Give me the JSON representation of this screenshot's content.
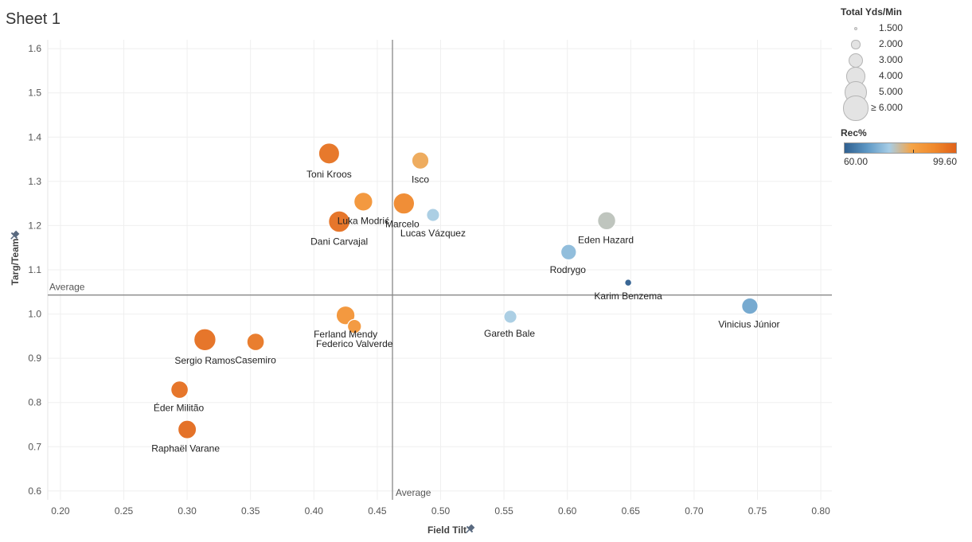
{
  "sheet": {
    "title": "Sheet 1"
  },
  "chart_data": {
    "type": "scatter",
    "title": "",
    "xlabel": "Field Tilt",
    "ylabel": "Targ/Team",
    "xlim": [
      0.19,
      0.81
    ],
    "ylim": [
      0.58,
      1.62
    ],
    "x_ticks": [
      0.2,
      0.25,
      0.3,
      0.35,
      0.4,
      0.45,
      0.5,
      0.55,
      0.6,
      0.65,
      0.7,
      0.75,
      0.8
    ],
    "x_tick_labels": [
      "0.20",
      "0.25",
      "0.30",
      "0.35",
      "0.40",
      "0.45",
      "0.50",
      "0.55",
      "0.60",
      "0.65",
      "0.70",
      "0.75",
      "0.80"
    ],
    "y_ticks": [
      0.6,
      0.7,
      0.8,
      0.9,
      1.0,
      1.1,
      1.2,
      1.3,
      1.4,
      1.5,
      1.6
    ],
    "y_tick_labels": [
      "0.6",
      "0.7",
      "0.8",
      "0.9",
      "1.0",
      "1.1",
      "1.2",
      "1.3",
      "1.4",
      "1.5",
      "1.6"
    ],
    "grid": true,
    "reference_lines": {
      "x_average": 0.462,
      "y_average": 1.043,
      "x_label": "Average",
      "y_label": "Average"
    },
    "size_measure": "Total Yds/Min",
    "color_measure": "Rec%",
    "color_range": [
      60.0,
      99.6
    ],
    "color_range_labels": [
      "60.00",
      "99.60"
    ],
    "color_scale": [
      "#2f5f8f",
      "#5d97c4",
      "#a6cde6",
      "#f5a447",
      "#f08a2d",
      "#e0621a"
    ],
    "points": [
      {
        "label": "Toni Kroos",
        "x": 0.412,
        "y": 1.363,
        "size": 5.0,
        "rec": 96.5
      },
      {
        "label": "Isco",
        "x": 0.484,
        "y": 1.347,
        "size": 3.8,
        "rec": 83.0
      },
      {
        "label": "Luka Modrić",
        "x": 0.439,
        "y": 1.254,
        "size": 4.3,
        "rec": 89.0
      },
      {
        "label": "Marcelo",
        "x": 0.471,
        "y": 1.25,
        "size": 5.1,
        "rec": 92.0
      },
      {
        "label": "Lucas Vázquez",
        "x": 0.494,
        "y": 1.224,
        "size": 2.8,
        "rec": 76.0
      },
      {
        "label": "Dani Carvajal",
        "x": 0.42,
        "y": 1.209,
        "size": 5.2,
        "rec": 97.0
      },
      {
        "label": "Eden Hazard",
        "x": 0.631,
        "y": 1.211,
        "size": 4.1,
        "rec": 78.0
      },
      {
        "label": "Rodrygo",
        "x": 0.601,
        "y": 1.14,
        "size": 3.4,
        "rec": 73.0
      },
      {
        "label": "Karim Benzema",
        "x": 0.648,
        "y": 1.071,
        "size": 1.8,
        "rec": 60.0
      },
      {
        "label": "Vinicius Júnior",
        "x": 0.744,
        "y": 1.018,
        "size": 3.6,
        "rec": 70.0
      },
      {
        "label": "Gareth Bale",
        "x": 0.555,
        "y": 0.994,
        "size": 2.8,
        "rec": 76.0
      },
      {
        "label": "Ferland Mendy",
        "x": 0.425,
        "y": 0.997,
        "size": 4.3,
        "rec": 89.0
      },
      {
        "label": "Federico Valverde",
        "x": 0.432,
        "y": 0.972,
        "size": 3.0,
        "rec": 88.0
      },
      {
        "label": "Sergio Ramos",
        "x": 0.314,
        "y": 0.942,
        "size": 5.4,
        "rec": 97.0
      },
      {
        "label": "Casemiro",
        "x": 0.354,
        "y": 0.937,
        "size": 3.9,
        "rec": 95.5
      },
      {
        "label": "Éder Militão",
        "x": 0.294,
        "y": 0.829,
        "size": 3.9,
        "rec": 97.0
      },
      {
        "label": "Raphaël Varane",
        "x": 0.3,
        "y": 0.739,
        "size": 4.2,
        "rec": 98.0
      }
    ]
  },
  "legend": {
    "size": {
      "title": "Total Yds/Min",
      "items": [
        {
          "label": "1.500",
          "value": 1.5
        },
        {
          "label": "2.000",
          "value": 2.0
        },
        {
          "label": "3.000",
          "value": 3.0
        },
        {
          "label": "4.000",
          "value": 4.0
        },
        {
          "label": "5.000",
          "value": 5.0
        },
        {
          "label": "≥ 6.000",
          "value": 6.0
        }
      ]
    },
    "color": {
      "title": "Rec%",
      "min_label": "60.00",
      "max_label": "99.60"
    }
  }
}
